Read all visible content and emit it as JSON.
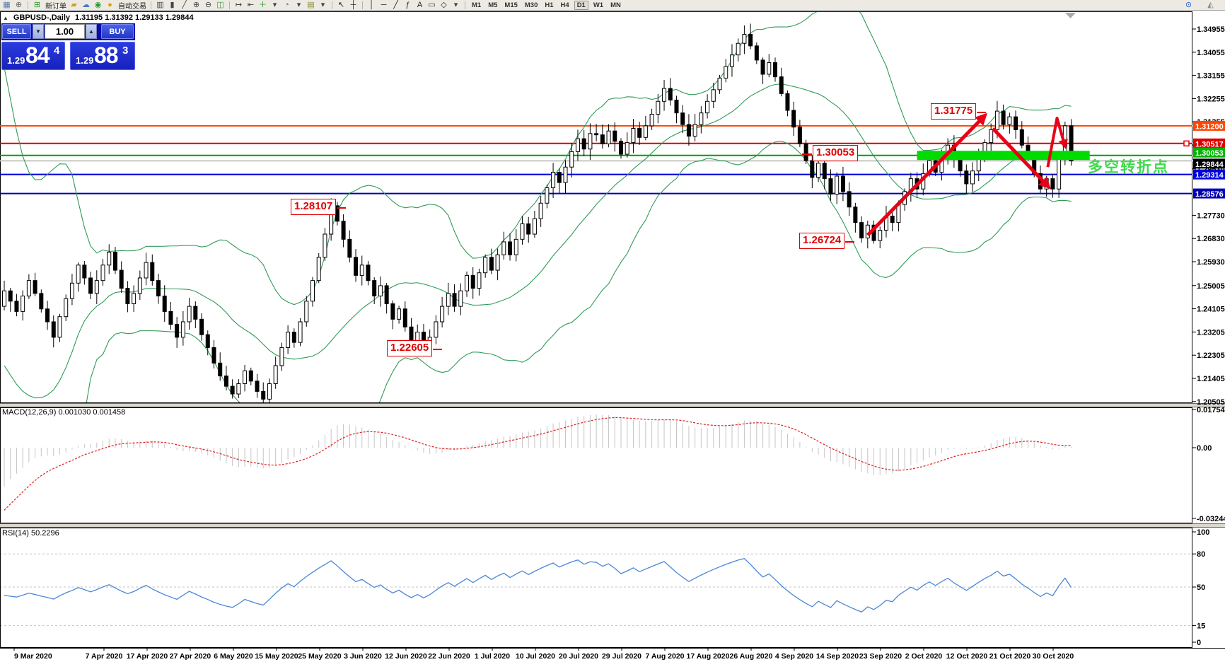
{
  "toolbar": {
    "items": [
      {
        "name": "chart-window-icon",
        "glyph": "▦",
        "color": "#5577aa"
      },
      {
        "name": "market-watch-icon",
        "glyph": "⊕",
        "color": "#666666"
      },
      {
        "sep": true
      },
      {
        "name": "new-order-icon",
        "glyph": "⊞",
        "color": "#2a9a2a",
        "label": "新订单"
      },
      {
        "name": "gold-icon",
        "glyph": "▰",
        "color": "#C9A227"
      },
      {
        "name": "cloud-icon",
        "glyph": "☁",
        "color": "#4A78C8"
      },
      {
        "name": "signal-icon",
        "glyph": "◉",
        "color": "#2a9a2a"
      },
      {
        "name": "autotrading-icon",
        "glyph": "●",
        "color": "#E0A000",
        "label": "自动交易"
      },
      {
        "sep": true
      },
      {
        "name": "bar-chart-icon",
        "glyph": "▥",
        "color": "#444444"
      },
      {
        "name": "candlestick-icon",
        "glyph": "▮",
        "color": "#444444"
      },
      {
        "name": "line-chart-icon",
        "glyph": "╱",
        "color": "#444444"
      },
      {
        "name": "zoom-in-icon",
        "glyph": "⊕",
        "color": "#444444"
      },
      {
        "name": "zoom-out-icon",
        "glyph": "⊖",
        "color": "#444444"
      },
      {
        "name": "tile-windows-icon",
        "glyph": "◫",
        "color": "#3a9a3a"
      },
      {
        "sep": true
      },
      {
        "name": "auto-scroll-icon",
        "glyph": "↦",
        "color": "#444444"
      },
      {
        "name": "chart-shift-icon",
        "glyph": "⇤",
        "color": "#444444"
      },
      {
        "name": "indicators-icon",
        "glyph": "＋",
        "color": "#2a9a2a"
      },
      {
        "name": "indicators-dropdown-icon",
        "glyph": "▾",
        "color": "#444444"
      },
      {
        "name": "periods-icon",
        "glyph": "◔",
        "color": "#3a6ad0"
      },
      {
        "name": "periods-dropdown-icon",
        "glyph": "▾",
        "color": "#444444"
      },
      {
        "name": "templates-icon",
        "glyph": "▤",
        "color": "#888833"
      },
      {
        "name": "templates-dropdown-icon",
        "glyph": "▾",
        "color": "#444444"
      },
      {
        "sep": true
      },
      {
        "name": "cursor-icon",
        "glyph": "↖",
        "color": "#222222"
      },
      {
        "name": "crosshair-icon",
        "glyph": "┼",
        "color": "#222222"
      },
      {
        "sep": true
      },
      {
        "name": "vertical-line-icon",
        "glyph": "│",
        "color": "#222222"
      },
      {
        "name": "horizontal-line-icon",
        "glyph": "─",
        "color": "#222222"
      },
      {
        "name": "trendline-icon",
        "glyph": "╱",
        "color": "#222222"
      },
      {
        "name": "fibonacci-icon",
        "glyph": "ƒ",
        "color": "#222222"
      },
      {
        "name": "text-icon",
        "glyph": "A",
        "color": "#222222"
      },
      {
        "name": "label-icon",
        "glyph": "▭",
        "color": "#222222"
      },
      {
        "name": "shapes-icon",
        "glyph": "◇",
        "color": "#222222"
      },
      {
        "name": "shapes-dropdown-icon",
        "glyph": "▾",
        "color": "#444444"
      }
    ],
    "timeframes": [
      "M1",
      "M5",
      "M15",
      "M30",
      "H1",
      "H4",
      "D1",
      "W1",
      "MN"
    ],
    "active_timeframe": "D1",
    "right_icons": [
      {
        "name": "search-icon",
        "glyph": "⊙",
        "color": "#2255cc"
      },
      {
        "name": "chat-icon",
        "glyph": "◭",
        "color": "#888888"
      }
    ]
  },
  "chart_header": {
    "collapse": "▲",
    "symbol": "GBPUSD-,Daily",
    "ohlc": "1.31195 1.31392 1.29133 1.29844"
  },
  "trade_panel": {
    "sell_label": "SELL",
    "buy_label": "BUY",
    "volume": "1.00",
    "bid_small": "1.29",
    "bid_big": "84",
    "bid_sup": "4",
    "ask_small": "1.29",
    "ask_big": "88",
    "ask_sup": "3"
  },
  "pane_labels": {
    "macd": "MACD(12,26,9) 0.001030 0.001458",
    "rsi": "RSI(14) 50.2296"
  },
  "annotations": {
    "boxes": [
      {
        "text": "1.31775"
      },
      {
        "text": "1.30053"
      },
      {
        "text": "1.26724"
      },
      {
        "text": "1.28107"
      },
      {
        "text": "1.22605"
      }
    ],
    "cn_note": "多空转折点"
  },
  "chart_data": {
    "type": "candlestick",
    "symbol": "GBPUSD",
    "timeframe": "Daily",
    "ohlc_display": "1.31195 1.31392 1.29133 1.29844",
    "ylim": [
      1.20505,
      1.34955
    ],
    "price_ticks": [
      "1.34955",
      "1.34055",
      "1.33155",
      "1.32255",
      "1.31355",
      "1.30455",
      "1.29530",
      "1.27730",
      "1.26830",
      "1.25930",
      "1.25005",
      "1.24105",
      "1.23205",
      "1.22305",
      "1.21405",
      "1.20505"
    ],
    "price_labels": [
      {
        "price": 1.312,
        "text": "1.31200",
        "bg": "#FF4500",
        "line": "#FF4500"
      },
      {
        "price": 1.30517,
        "text": "1.30517",
        "bg": "#DD0000",
        "line": "#DD0000",
        "handle": true
      },
      {
        "price": 1.30053,
        "text": "1.30053",
        "bg": "#00B400",
        "line": "#00A000",
        "nudge": -4
      },
      {
        "price": 1.29844,
        "text": "1.29844",
        "bg": "#000000",
        "line": "#C8C8C8",
        "nudge": 4
      },
      {
        "price": 1.29314,
        "text": "1.29314",
        "bg": "#0000DC",
        "line": "#0000DC"
      },
      {
        "price": 1.28576,
        "text": "1.28576",
        "bg": "#0000B4",
        "line": "#0000B4"
      }
    ],
    "date_labels": [
      "9 Mar 2020",
      "7 Apr 2020",
      "17 Apr 2020",
      "27 Apr 2020",
      "6 May 2020",
      "15 May 2020",
      "25 May 2020",
      "3 Jun 2020",
      "12 Jun 2020",
      "22 Jun 2020",
      "1 Jul 2020",
      "10 Jul 2020",
      "20 Jul 2020",
      "29 Jul 2020",
      "7 Aug 2020",
      "17 Aug 2020",
      "26 Aug 2020",
      "4 Sep 2020",
      "14 Sep 2020",
      "23 Sep 2020",
      "2 Oct 2020",
      "12 Oct 2020",
      "21 Oct 2020",
      "30 Oct 2020"
    ],
    "seed_closes": [
      1.32,
      1.318,
      1.312,
      1.3,
      1.285,
      1.265,
      1.24,
      1.215,
      1.19,
      1.165,
      1.145,
      1.13,
      1.121,
      1.15,
      1.18,
      1.205,
      1.225,
      1.215,
      1.23,
      1.242
    ],
    "closes": [
      1.248,
      1.244,
      1.24,
      1.246,
      1.252,
      1.247,
      1.241,
      1.236,
      1.23,
      1.238,
      1.245,
      1.251,
      1.258,
      1.253,
      1.247,
      1.252,
      1.258,
      1.263,
      1.256,
      1.249,
      1.243,
      1.247,
      1.253,
      1.259,
      1.252,
      1.246,
      1.24,
      1.235,
      1.23,
      1.236,
      1.242,
      1.237,
      1.231,
      1.226,
      1.22,
      1.215,
      1.211,
      1.208,
      1.212,
      1.217,
      1.213,
      1.209,
      1.206,
      1.212,
      1.219,
      1.226,
      1.232,
      1.228,
      1.236,
      1.244,
      1.252,
      1.261,
      1.27,
      1.281,
      1.275,
      1.268,
      1.261,
      1.254,
      1.258,
      1.252,
      1.246,
      1.25,
      1.243,
      1.237,
      1.241,
      1.234,
      1.228,
      1.232,
      1.226,
      1.23,
      1.236,
      1.242,
      1.247,
      1.242,
      1.248,
      1.254,
      1.249,
      1.255,
      1.261,
      1.256,
      1.262,
      1.267,
      1.262,
      1.268,
      1.274,
      1.27,
      1.276,
      1.282,
      1.288,
      1.294,
      1.29,
      1.296,
      1.302,
      1.307,
      1.303,
      1.309,
      1.3085,
      1.305,
      1.31,
      1.306,
      1.301,
      1.3055,
      1.311,
      1.3075,
      1.312,
      1.3165,
      1.3215,
      1.3265,
      1.322,
      1.317,
      1.3125,
      1.308,
      1.3125,
      1.317,
      1.3215,
      1.326,
      1.3305,
      1.335,
      1.3395,
      1.344,
      1.3475,
      1.343,
      1.3375,
      1.332,
      1.3365,
      1.331,
      1.3245,
      1.318,
      1.3115,
      1.305,
      1.2985,
      1.292,
      1.2975,
      1.2915,
      1.2855,
      1.2925,
      1.2865,
      1.2805,
      1.2745,
      1.2685,
      1.2735,
      1.2675,
      1.2715,
      1.277,
      1.2745,
      1.2815,
      1.2865,
      1.2915,
      1.2875,
      1.2935,
      1.2985,
      1.294,
      1.2995,
      1.3045,
      1.299,
      1.2945,
      1.2895,
      1.2945,
      1.3,
      1.3055,
      1.3105,
      1.3177,
      1.3125,
      1.3155,
      1.3105,
      1.3045,
      1.2995,
      1.2935,
      1.2875,
      1.2915,
      1.2875,
      1.2995,
      1.312,
      1.2984
    ],
    "candle_colors": {
      "bull": "#FFFFFF",
      "bear": "#000000",
      "outline": "#000000"
    },
    "bollinger": {
      "period": 20,
      "deviation": 2,
      "color": "#2E9B57"
    },
    "green_zone": {
      "price": 1.30053,
      "from_index": 148,
      "to_index": 176,
      "color": "#00DC00"
    },
    "arrows": {
      "color": "#E80016",
      "up": [
        [
          140,
          1.2696
        ],
        [
          159,
          1.316
        ]
      ],
      "down": [
        [
          160.3,
          1.311
        ],
        [
          169.3,
          1.2884
        ]
      ],
      "zigzag": [
        [
          169.2,
          1.296
        ],
        [
          170.7,
          1.315
        ],
        [
          172.0,
          1.304
        ]
      ]
    },
    "macd": {
      "fast": 12,
      "slow": 26,
      "signal": 9,
      "label_values": "0.001030 0.001458",
      "axis_ticks": [
        {
          "v": 0.017542,
          "text": "0.017542"
        },
        {
          "v": 0,
          "text": "0.00"
        },
        {
          "v": -0.032445,
          "text": "-0.032445"
        }
      ],
      "hist_color": "#C4C4C4",
      "signal_color": "#E02020"
    },
    "rsi": {
      "period": 14,
      "value": "50.2296",
      "color": "#4A86D8",
      "levels": [
        {
          "v": 100,
          "text": "100",
          "dashed": false
        },
        {
          "v": 80,
          "text": "80",
          "dashed": true
        },
        {
          "v": 50,
          "text": "50",
          "dashed": true
        },
        {
          "v": 15,
          "text": "15",
          "dashed": true
        },
        {
          "v": 0,
          "text": "0",
          "dashed": false
        }
      ]
    }
  }
}
